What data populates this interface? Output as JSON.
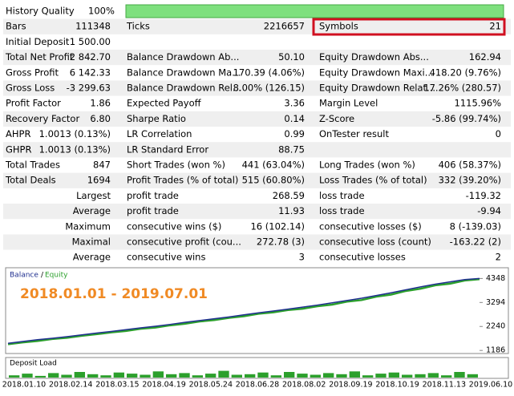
{
  "table": {
    "rows": [
      [
        {
          "label": "History Quality",
          "value": "100%"
        }
      ],
      [
        {
          "label": "Bars",
          "value": "111348"
        },
        {
          "label": "Ticks",
          "value": "2216657"
        },
        {
          "label": "Symbols",
          "value": "21"
        }
      ],
      [
        {
          "label": "Initial Deposit",
          "value": "1 500.00"
        }
      ],
      [
        {
          "label": "Total Net Profit",
          "value": "2 842.70"
        },
        {
          "label": "Balance Drawdown Ab...",
          "value": "50.10"
        },
        {
          "label": "Equity Drawdown Abs...",
          "value": "162.94"
        }
      ],
      [
        {
          "label": "Gross Profit",
          "value": "6 142.33"
        },
        {
          "label": "Balance Drawdown Ma...",
          "value": "170.39 (4.06%)"
        },
        {
          "label": "Equity Drawdown Maxi...",
          "value": "418.20 (9.76%)"
        }
      ],
      [
        {
          "label": "Gross Loss",
          "value": "-3 299.63"
        },
        {
          "label": "Balance Drawdown Rel...",
          "value": "8.00% (126.15)"
        },
        {
          "label": "Equity Drawdown Relat...",
          "value": "17.26% (280.57)"
        }
      ],
      [
        {
          "label": "Profit Factor",
          "value": "1.86"
        },
        {
          "label": "Expected Payoff",
          "value": "3.36"
        },
        {
          "label": "Margin Level",
          "value": "1115.96%"
        }
      ],
      [
        {
          "label": "Recovery Factor",
          "value": "6.80"
        },
        {
          "label": "Sharpe Ratio",
          "value": "0.14"
        },
        {
          "label": "Z-Score",
          "value": "-5.86 (99.74%)"
        }
      ],
      [
        {
          "label": "AHPR",
          "value": "1.0013 (0.13%)"
        },
        {
          "label": "LR Correlation",
          "value": "0.99"
        },
        {
          "label": "OnTester result",
          "value": "0"
        }
      ],
      [
        {
          "label": "GHPR",
          "value": "1.0013 (0.13%)"
        },
        {
          "label": "LR Standard Error",
          "value": "88.75"
        }
      ],
      [
        {
          "label": "Total Trades",
          "value": "847"
        },
        {
          "label": "Short Trades (won %)",
          "value": "441 (63.04%)"
        },
        {
          "label": "Long Trades (won %)",
          "value": "406 (58.37%)"
        }
      ],
      [
        {
          "label": "Total Deals",
          "value": "1694"
        },
        {
          "label": "Profit Trades (% of total)",
          "value": "515 (60.80%)"
        },
        {
          "label": "Loss Trades (% of total)",
          "value": "332 (39.20%)"
        }
      ],
      [
        {
          "label": "Largest"
        },
        {
          "label": "profit trade",
          "value": "268.59"
        },
        {
          "label": "loss trade",
          "value": "-119.32"
        }
      ],
      [
        {
          "label": "Average"
        },
        {
          "label": "profit trade",
          "value": "11.93"
        },
        {
          "label": "loss trade",
          "value": "-9.94"
        }
      ],
      [
        {
          "label": "Maximum"
        },
        {
          "label": "consecutive wins ($)",
          "value": "16 (102.14)"
        },
        {
          "label": "consecutive losses ($)",
          "value": "8 (-139.03)"
        }
      ],
      [
        {
          "label": "Maximal"
        },
        {
          "label": "consecutive profit (cou...",
          "value": "272.78 (3)"
        },
        {
          "label": "consecutive loss (count)",
          "value": "-163.22 (2)"
        }
      ],
      [
        {
          "label": "Average"
        },
        {
          "label": "consecutive wins",
          "value": "3"
        },
        {
          "label": "consecutive losses",
          "value": "2"
        }
      ]
    ]
  },
  "chart": {
    "legend": [
      "Balance",
      "Equity"
    ],
    "period": "2018.01.01 - 2019.07.01",
    "ylim": [
      1086,
      4750
    ],
    "yticks": [
      4348,
      3294,
      2240,
      1186
    ],
    "balance": [
      1500,
      1580,
      1660,
      1720,
      1790,
      1870,
      1950,
      2020,
      2100,
      2180,
      2250,
      2330,
      2420,
      2500,
      2580,
      2660,
      2750,
      2840,
      2920,
      3000,
      3090,
      3180,
      3280,
      3380,
      3480,
      3600,
      3720,
      3850,
      3980,
      4100,
      4200,
      4300,
      4348
    ],
    "equity": [
      1460,
      1540,
      1600,
      1690,
      1740,
      1830,
      1900,
      1980,
      2040,
      2140,
      2190,
      2290,
      2360,
      2460,
      2520,
      2620,
      2690,
      2800,
      2860,
      2960,
      3020,
      3130,
      3200,
      3330,
      3400,
      3550,
      3640,
      3800,
      3900,
      4050,
      4120,
      4260,
      4320
    ],
    "deposit_load_title": "Deposit Load",
    "deposit_load": [
      20,
      35,
      15,
      40,
      25,
      50,
      30,
      20,
      45,
      35,
      25,
      55,
      30,
      40,
      20,
      35,
      60,
      25,
      30,
      45,
      20,
      50,
      35,
      25,
      40,
      30,
      55,
      20,
      35,
      45,
      25,
      30,
      40,
      20,
      50,
      30
    ],
    "xlabels": [
      "2018.01.10",
      "2018.02.14",
      "2018.03.15",
      "2018.04.19",
      "2018.05.24",
      "2018.06.28",
      "2018.08.02",
      "2018.09.19",
      "2018.10.19",
      "2018.11.13",
      "2019.06.10"
    ]
  }
}
